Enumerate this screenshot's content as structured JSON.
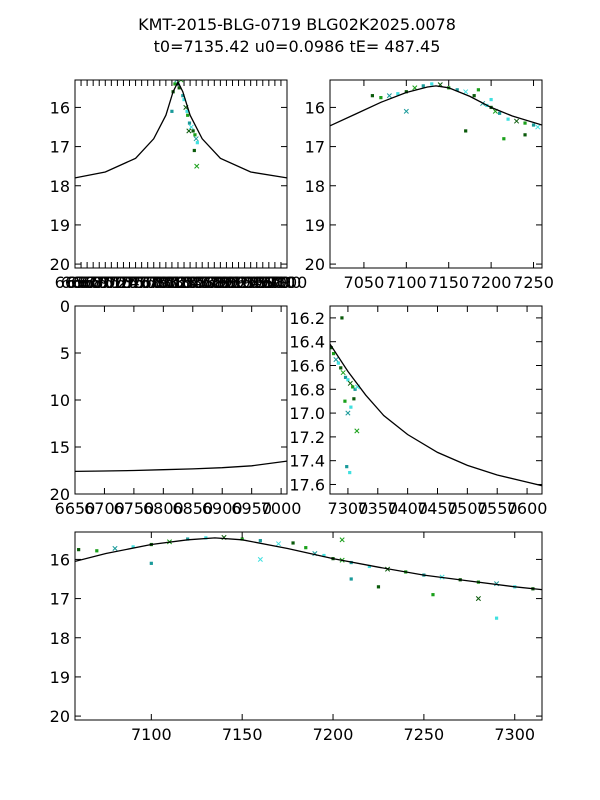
{
  "title": {
    "line1": "KMT-2015-BLG-0719 BLG02K2025.0078",
    "line2": "t0=7135.42 u0=0.0986 tE= 487.45"
  },
  "colors": {
    "model": "#000000",
    "dark_green": "#0a5a0a",
    "green": "#1aa01a",
    "teal": "#1a9a9a",
    "cyan": "#40e0e0"
  },
  "chart_data": [
    {
      "type": "scatter",
      "panel": "top-left",
      "xlim": [
        6650,
        7000
      ],
      "ylim": [
        20.1,
        15.3
      ],
      "x_ticks": [
        6650,
        6660,
        6670,
        6680,
        6690,
        6700,
        6710,
        6720,
        6730,
        6740,
        6750,
        6760,
        6770,
        6780,
        6790,
        6800,
        6810,
        6820,
        6830,
        6840,
        6850,
        6860,
        6870,
        6880,
        6890,
        6900,
        6910,
        6920,
        6930,
        6940,
        6950,
        6960,
        6970,
        6980,
        6990,
        7000
      ],
      "y_ticks": [
        "16",
        "17",
        "18",
        "19",
        "20"
      ],
      "y_tick_values": [
        16,
        17,
        18,
        19,
        20
      ],
      "model_line": [
        [
          6650,
          17.8
        ],
        [
          6700,
          17.65
        ],
        [
          6750,
          17.3
        ],
        [
          6780,
          16.8
        ],
        [
          6800,
          16.2
        ],
        [
          6812,
          15.6
        ],
        [
          6820,
          15.35
        ],
        [
          6828,
          15.6
        ],
        [
          6840,
          16.2
        ],
        [
          6860,
          16.8
        ],
        [
          6890,
          17.3
        ],
        [
          6940,
          17.65
        ],
        [
          7000,
          17.8
        ]
      ],
      "scatter_points": [
        [
          6812,
          15.6
        ],
        [
          6815,
          15.4
        ],
        [
          6818,
          15.3
        ],
        [
          6820,
          15.4
        ],
        [
          6822,
          15.5
        ],
        [
          6825,
          15.3
        ],
        [
          6828,
          15.7
        ],
        [
          6830,
          15.8
        ],
        [
          6833,
          16.0
        ],
        [
          6836,
          16.2
        ],
        [
          6839,
          16.4
        ],
        [
          6842,
          16.5
        ],
        [
          6845,
          16.6
        ],
        [
          6848,
          16.7
        ],
        [
          6850,
          16.8
        ],
        [
          6852,
          16.9
        ],
        [
          6847,
          17.1
        ],
        [
          6851,
          17.5
        ],
        [
          6810,
          16.1
        ],
        [
          6835,
          16.1
        ],
        [
          6838,
          16.6
        ]
      ]
    },
    {
      "type": "scatter",
      "panel": "top-right",
      "xlim": [
        7010,
        7260
      ],
      "ylim": [
        20.1,
        15.3
      ],
      "x_ticks": [
        "7050",
        "7100",
        "7150",
        "7200",
        "7250"
      ],
      "x_tick_values": [
        7050,
        7100,
        7150,
        7200,
        7250
      ],
      "y_ticks": [
        "16",
        "17",
        "18",
        "19",
        "20"
      ],
      "y_tick_values": [
        16,
        17,
        18,
        19,
        20
      ],
      "model_line": [
        [
          7010,
          16.47
        ],
        [
          7040,
          16.17
        ],
        [
          7070,
          15.87
        ],
        [
          7100,
          15.62
        ],
        [
          7125,
          15.48
        ],
        [
          7135,
          15.45
        ],
        [
          7150,
          15.5
        ],
        [
          7175,
          15.72
        ],
        [
          7200,
          16.0
        ],
        [
          7225,
          16.22
        ],
        [
          7260,
          16.45
        ]
      ],
      "scatter_points": [
        [
          7060,
          15.7
        ],
        [
          7070,
          15.75
        ],
        [
          7080,
          15.7
        ],
        [
          7090,
          15.65
        ],
        [
          7100,
          15.6
        ],
        [
          7110,
          15.5
        ],
        [
          7120,
          15.45
        ],
        [
          7130,
          15.4
        ],
        [
          7140,
          15.42
        ],
        [
          7150,
          15.5
        ],
        [
          7160,
          15.55
        ],
        [
          7170,
          15.6
        ],
        [
          7180,
          15.7
        ],
        [
          7185,
          15.55
        ],
        [
          7190,
          15.9
        ],
        [
          7195,
          15.95
        ],
        [
          7200,
          16.0
        ],
        [
          7205,
          16.1
        ],
        [
          7210,
          16.15
        ],
        [
          7220,
          16.3
        ],
        [
          7230,
          16.35
        ],
        [
          7240,
          16.4
        ],
        [
          7250,
          16.45
        ],
        [
          7255,
          16.5
        ],
        [
          7170,
          16.6
        ],
        [
          7215,
          16.8
        ],
        [
          7100,
          16.1
        ],
        [
          7200,
          15.8
        ],
        [
          7240,
          16.7
        ]
      ]
    },
    {
      "type": "line",
      "panel": "middle-left",
      "xlim": [
        6650,
        7010
      ],
      "ylim": [
        20,
        0
      ],
      "x_ticks": [
        "6650",
        "6700",
        "6750",
        "6800",
        "6850",
        "6900",
        "6950",
        "7000"
      ],
      "x_tick_values": [
        6650,
        6700,
        6750,
        6800,
        6850,
        6900,
        6950,
        7000
      ],
      "y_ticks": [
        "0",
        "5",
        "10",
        "15",
        "20"
      ],
      "y_tick_values": [
        0,
        5,
        10,
        15,
        20
      ],
      "model_line": [
        [
          6650,
          17.6
        ],
        [
          6700,
          17.55
        ],
        [
          6750,
          17.5
        ],
        [
          6800,
          17.42
        ],
        [
          6850,
          17.33
        ],
        [
          6900,
          17.2
        ],
        [
          6950,
          17.0
        ],
        [
          7010,
          16.5
        ]
      ]
    },
    {
      "type": "scatter",
      "panel": "middle-right",
      "xlim": [
        7270,
        7625
      ],
      "ylim": [
        17.68,
        16.1
      ],
      "x_ticks": [
        "7300",
        "7350",
        "7400",
        "7450",
        "7500",
        "7550",
        "7600"
      ],
      "x_tick_values": [
        7300,
        7350,
        7400,
        7450,
        7500,
        7550,
        7600
      ],
      "y_ticks": [
        "16.2",
        "16.4",
        "16.6",
        "16.8",
        "17.0",
        "17.2",
        "17.4",
        "17.6"
      ],
      "y_tick_values": [
        16.2,
        16.4,
        16.6,
        16.8,
        17.0,
        17.2,
        17.4,
        17.6
      ],
      "model_line": [
        [
          7270,
          16.42
        ],
        [
          7300,
          16.65
        ],
        [
          7330,
          16.85
        ],
        [
          7360,
          17.02
        ],
        [
          7400,
          17.18
        ],
        [
          7450,
          17.33
        ],
        [
          7500,
          17.44
        ],
        [
          7550,
          17.52
        ],
        [
          7600,
          17.58
        ],
        [
          7625,
          17.61
        ]
      ],
      "scatter_points": [
        [
          7272,
          16.45
        ],
        [
          7276,
          16.5
        ],
        [
          7280,
          16.55
        ],
        [
          7284,
          16.58
        ],
        [
          7288,
          16.62
        ],
        [
          7292,
          16.66
        ],
        [
          7296,
          16.7
        ],
        [
          7300,
          16.72
        ],
        [
          7304,
          16.75
        ],
        [
          7308,
          16.78
        ],
        [
          7312,
          16.8
        ],
        [
          7316,
          16.78
        ],
        [
          7290,
          16.2
        ],
        [
          7295,
          16.9
        ],
        [
          7300,
          17.0
        ],
        [
          7305,
          16.95
        ],
        [
          7310,
          16.88
        ],
        [
          7315,
          17.15
        ],
        [
          7298,
          17.45
        ],
        [
          7303,
          17.5
        ]
      ]
    },
    {
      "type": "scatter",
      "panel": "bottom",
      "xlim": [
        7058,
        7315
      ],
      "ylim": [
        20.1,
        15.3
      ],
      "x_ticks": [
        "7100",
        "7150",
        "7200",
        "7250",
        "7300"
      ],
      "x_tick_values": [
        7100,
        7150,
        7200,
        7250,
        7300
      ],
      "y_ticks": [
        "16",
        "17",
        "18",
        "19",
        "20"
      ],
      "y_tick_values": [
        16,
        17,
        18,
        19,
        20
      ],
      "model_line": [
        [
          7058,
          16.05
        ],
        [
          7075,
          15.85
        ],
        [
          7100,
          15.62
        ],
        [
          7120,
          15.5
        ],
        [
          7135,
          15.45
        ],
        [
          7150,
          15.5
        ],
        [
          7175,
          15.72
        ],
        [
          7200,
          15.98
        ],
        [
          7225,
          16.2
        ],
        [
          7250,
          16.4
        ],
        [
          7275,
          16.55
        ],
        [
          7300,
          16.7
        ],
        [
          7315,
          16.77
        ]
      ],
      "scatter_points": [
        [
          7060,
          15.75
        ],
        [
          7070,
          15.78
        ],
        [
          7080,
          15.72
        ],
        [
          7090,
          15.68
        ],
        [
          7100,
          15.62
        ],
        [
          7110,
          15.55
        ],
        [
          7120,
          15.48
        ],
        [
          7130,
          15.45
        ],
        [
          7140,
          15.44
        ],
        [
          7150,
          15.48
        ],
        [
          7160,
          15.52
        ],
        [
          7170,
          15.6
        ],
        [
          7178,
          15.58
        ],
        [
          7185,
          15.7
        ],
        [
          7190,
          15.85
        ],
        [
          7195,
          15.9
        ],
        [
          7200,
          15.98
        ],
        [
          7205,
          16.02
        ],
        [
          7210,
          16.08
        ],
        [
          7220,
          16.18
        ],
        [
          7230,
          16.25
        ],
        [
          7240,
          16.32
        ],
        [
          7250,
          16.4
        ],
        [
          7260,
          16.45
        ],
        [
          7270,
          16.52
        ],
        [
          7280,
          16.58
        ],
        [
          7290,
          16.62
        ],
        [
          7300,
          16.7
        ],
        [
          7310,
          16.75
        ],
        [
          7205,
          15.5
        ],
        [
          7210,
          16.5
        ],
        [
          7290,
          17.5
        ],
        [
          7280,
          17.0
        ],
        [
          7255,
          16.9
        ],
        [
          7100,
          16.1
        ],
        [
          7160,
          16.0
        ],
        [
          7225,
          16.7
        ]
      ]
    }
  ]
}
